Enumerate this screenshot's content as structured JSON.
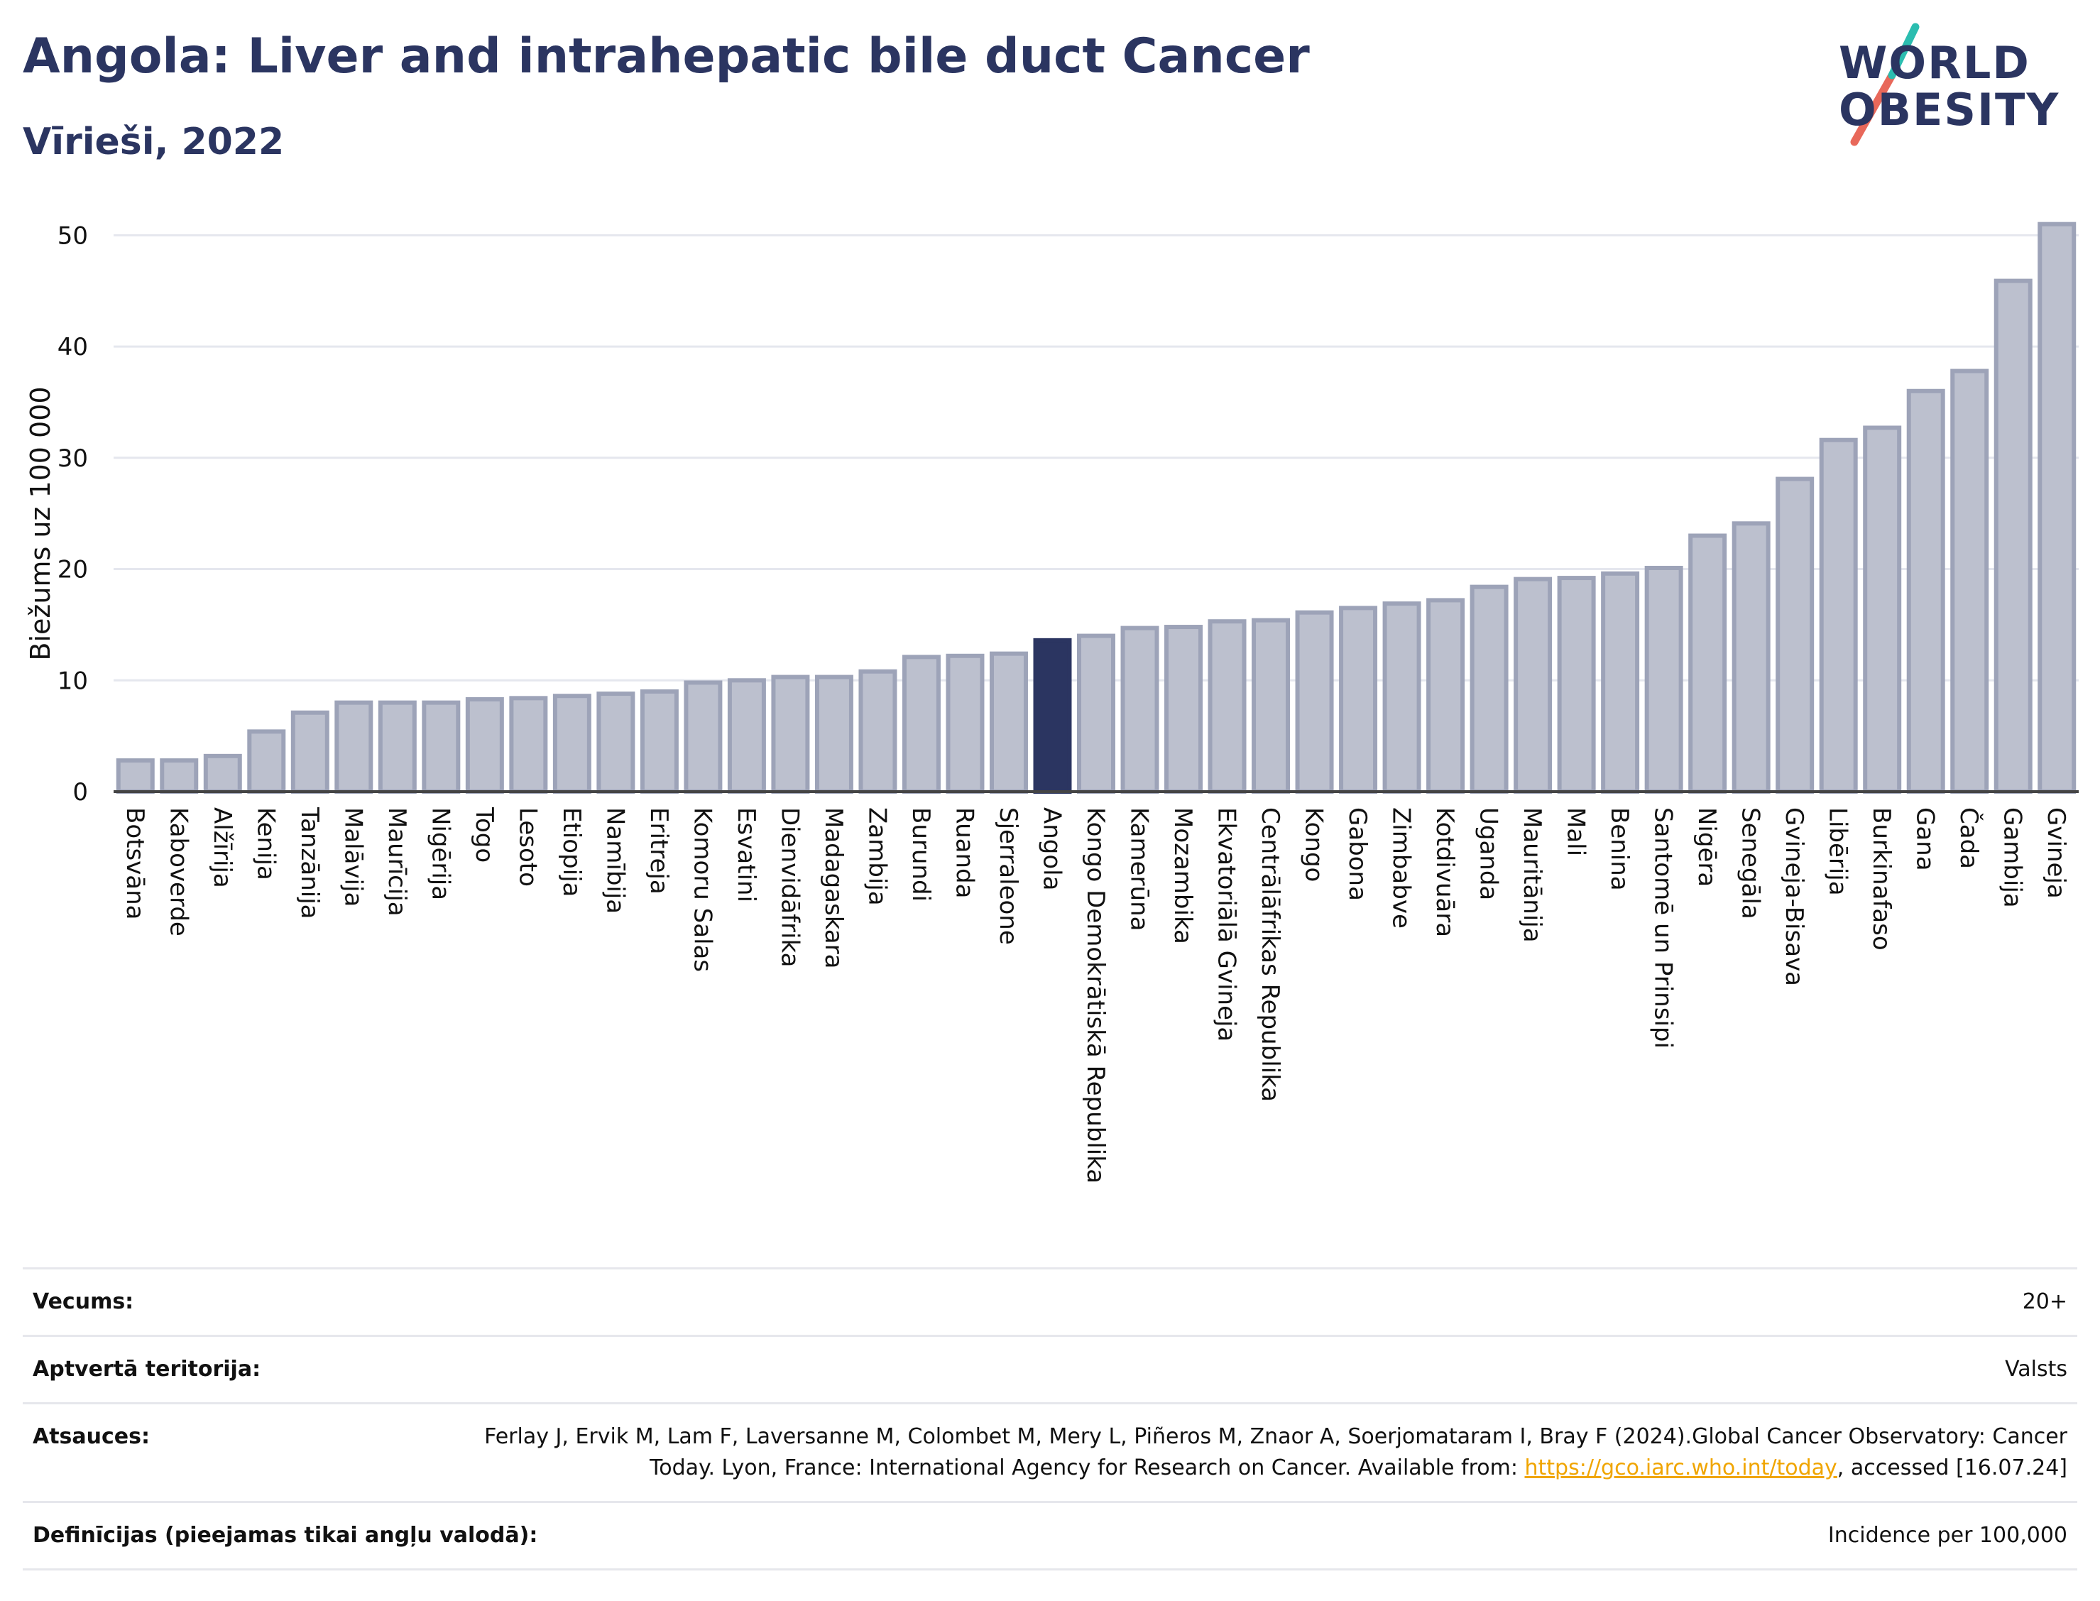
{
  "header": {
    "title": "Angola: Liver and intrahepatic bile duct Cancer",
    "subtitle": "Vīrieši, 2022"
  },
  "logo": {
    "line1": "WORLD",
    "line2": "OBESITY",
    "colors": {
      "text": "#2b3561",
      "stripe_top": "#2bbdb0",
      "stripe_bottom": "#e8685a"
    }
  },
  "chart_data": {
    "type": "bar",
    "ylabel": "Biežums uz 100 000",
    "xlabel": "",
    "ylim": [
      0,
      52
    ],
    "yticks": [
      0,
      10,
      20,
      30,
      40,
      50
    ],
    "grid": true,
    "highlight": "Angola",
    "colors": {
      "bar": "#bcc0ce",
      "bar_edge": "#9da3b8",
      "highlight": "#2b3561"
    },
    "categories": [
      "Botsvāna",
      "Kaboverde",
      "Alžīrija",
      "Kenija",
      "Tanzānija",
      "Malāvija",
      "Maurīcija",
      "Nigērija",
      "Togo",
      "Lesoto",
      "Etiopija",
      "Namībija",
      "Eritreja",
      "Komoru Salas",
      "Esvatini",
      "Dienvidāfrika",
      "Madagaskara",
      "Zambija",
      "Burundi",
      "Ruanda",
      "Sjerraleone",
      "Angola",
      "Kongo Demokrātiskā Republika",
      "Kamerūna",
      "Mozambika",
      "Ekvatoriālā Gvineja",
      "Centrālāfrikas Republika",
      "Kongo",
      "Gabona",
      "Zimbabve",
      "Kotdivuāra",
      "Uganda",
      "Mauritānija",
      "Mali",
      "Benina",
      "Santomē un Prinsipi",
      "Nigēra",
      "Senegāla",
      "Gvineja-Bisava",
      "Libērija",
      "Burkinafaso",
      "Gana",
      "Čada",
      "Gambija",
      "Gvineja"
    ],
    "values": [
      2.8,
      2.8,
      3.2,
      5.4,
      7.1,
      8.0,
      8.0,
      8.0,
      8.3,
      8.4,
      8.6,
      8.8,
      9.0,
      9.8,
      10.0,
      10.3,
      10.3,
      10.8,
      12.1,
      12.2,
      12.4,
      13.6,
      14.0,
      14.7,
      14.8,
      15.3,
      15.4,
      16.1,
      16.5,
      16.9,
      17.2,
      18.4,
      19.1,
      19.2,
      19.6,
      20.1,
      23.0,
      24.1,
      28.1,
      31.6,
      32.7,
      36.0,
      37.8,
      45.9,
      51.0
    ]
  },
  "info": [
    {
      "label": "Vecums:",
      "value": "20+"
    },
    {
      "label": "Aptvertā teritorija:",
      "value": "Valsts"
    },
    {
      "label": "Atsauces:",
      "value": "Ferlay J, Ervik M, Lam F, Laversanne M, Colombet M, Mery L, Piñeros M, Znaor A, Soerjomataram I, Bray F (2024).Global Cancer Observatory: Cancer Today. Lyon, France: International Agency for Research on Cancer. Available from:",
      "link": "https://gco.iarc.who.int/today",
      "suffix": ", accessed [16.07.24]"
    },
    {
      "label": "Definīcijas (pieejamas tikai angļu valodā):",
      "value": "Incidence per 100,000"
    }
  ]
}
